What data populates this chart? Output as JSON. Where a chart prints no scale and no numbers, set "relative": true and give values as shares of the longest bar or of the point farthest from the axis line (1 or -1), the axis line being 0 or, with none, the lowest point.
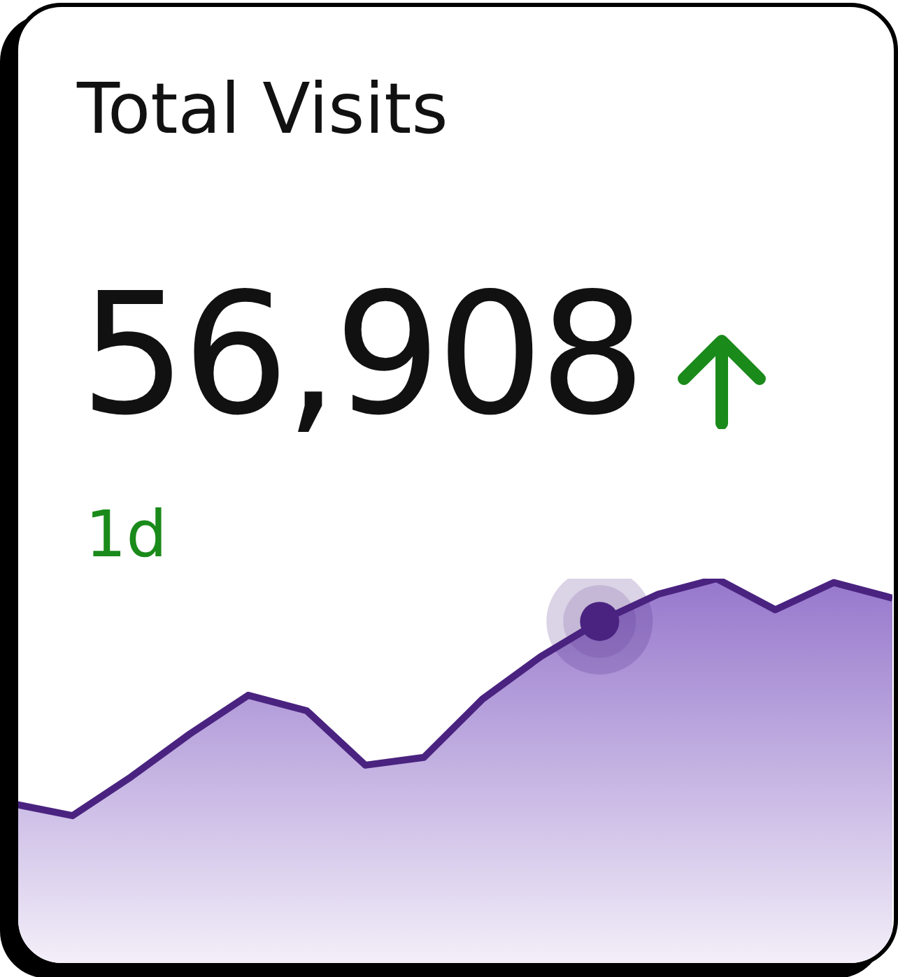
{
  "chart_data": {
    "type": "area",
    "title": "Total Visits",
    "annotations": [
      "56,908",
      "1d"
    ],
    "relative": true,
    "categories": [
      null,
      null,
      null,
      null,
      null,
      null,
      null,
      null,
      null,
      null,
      null,
      null,
      null,
      null,
      null,
      null
    ],
    "series": [
      {
        "color": "#4a2380",
        "values": [
          0.42,
          0.39,
          0.49,
          0.6,
          0.7,
          0.66,
          0.52,
          0.54,
          0.69,
          0.8,
          0.89,
          0.96,
          1.0,
          0.92,
          0.99,
          0.95
        ]
      }
    ]
  }
}
